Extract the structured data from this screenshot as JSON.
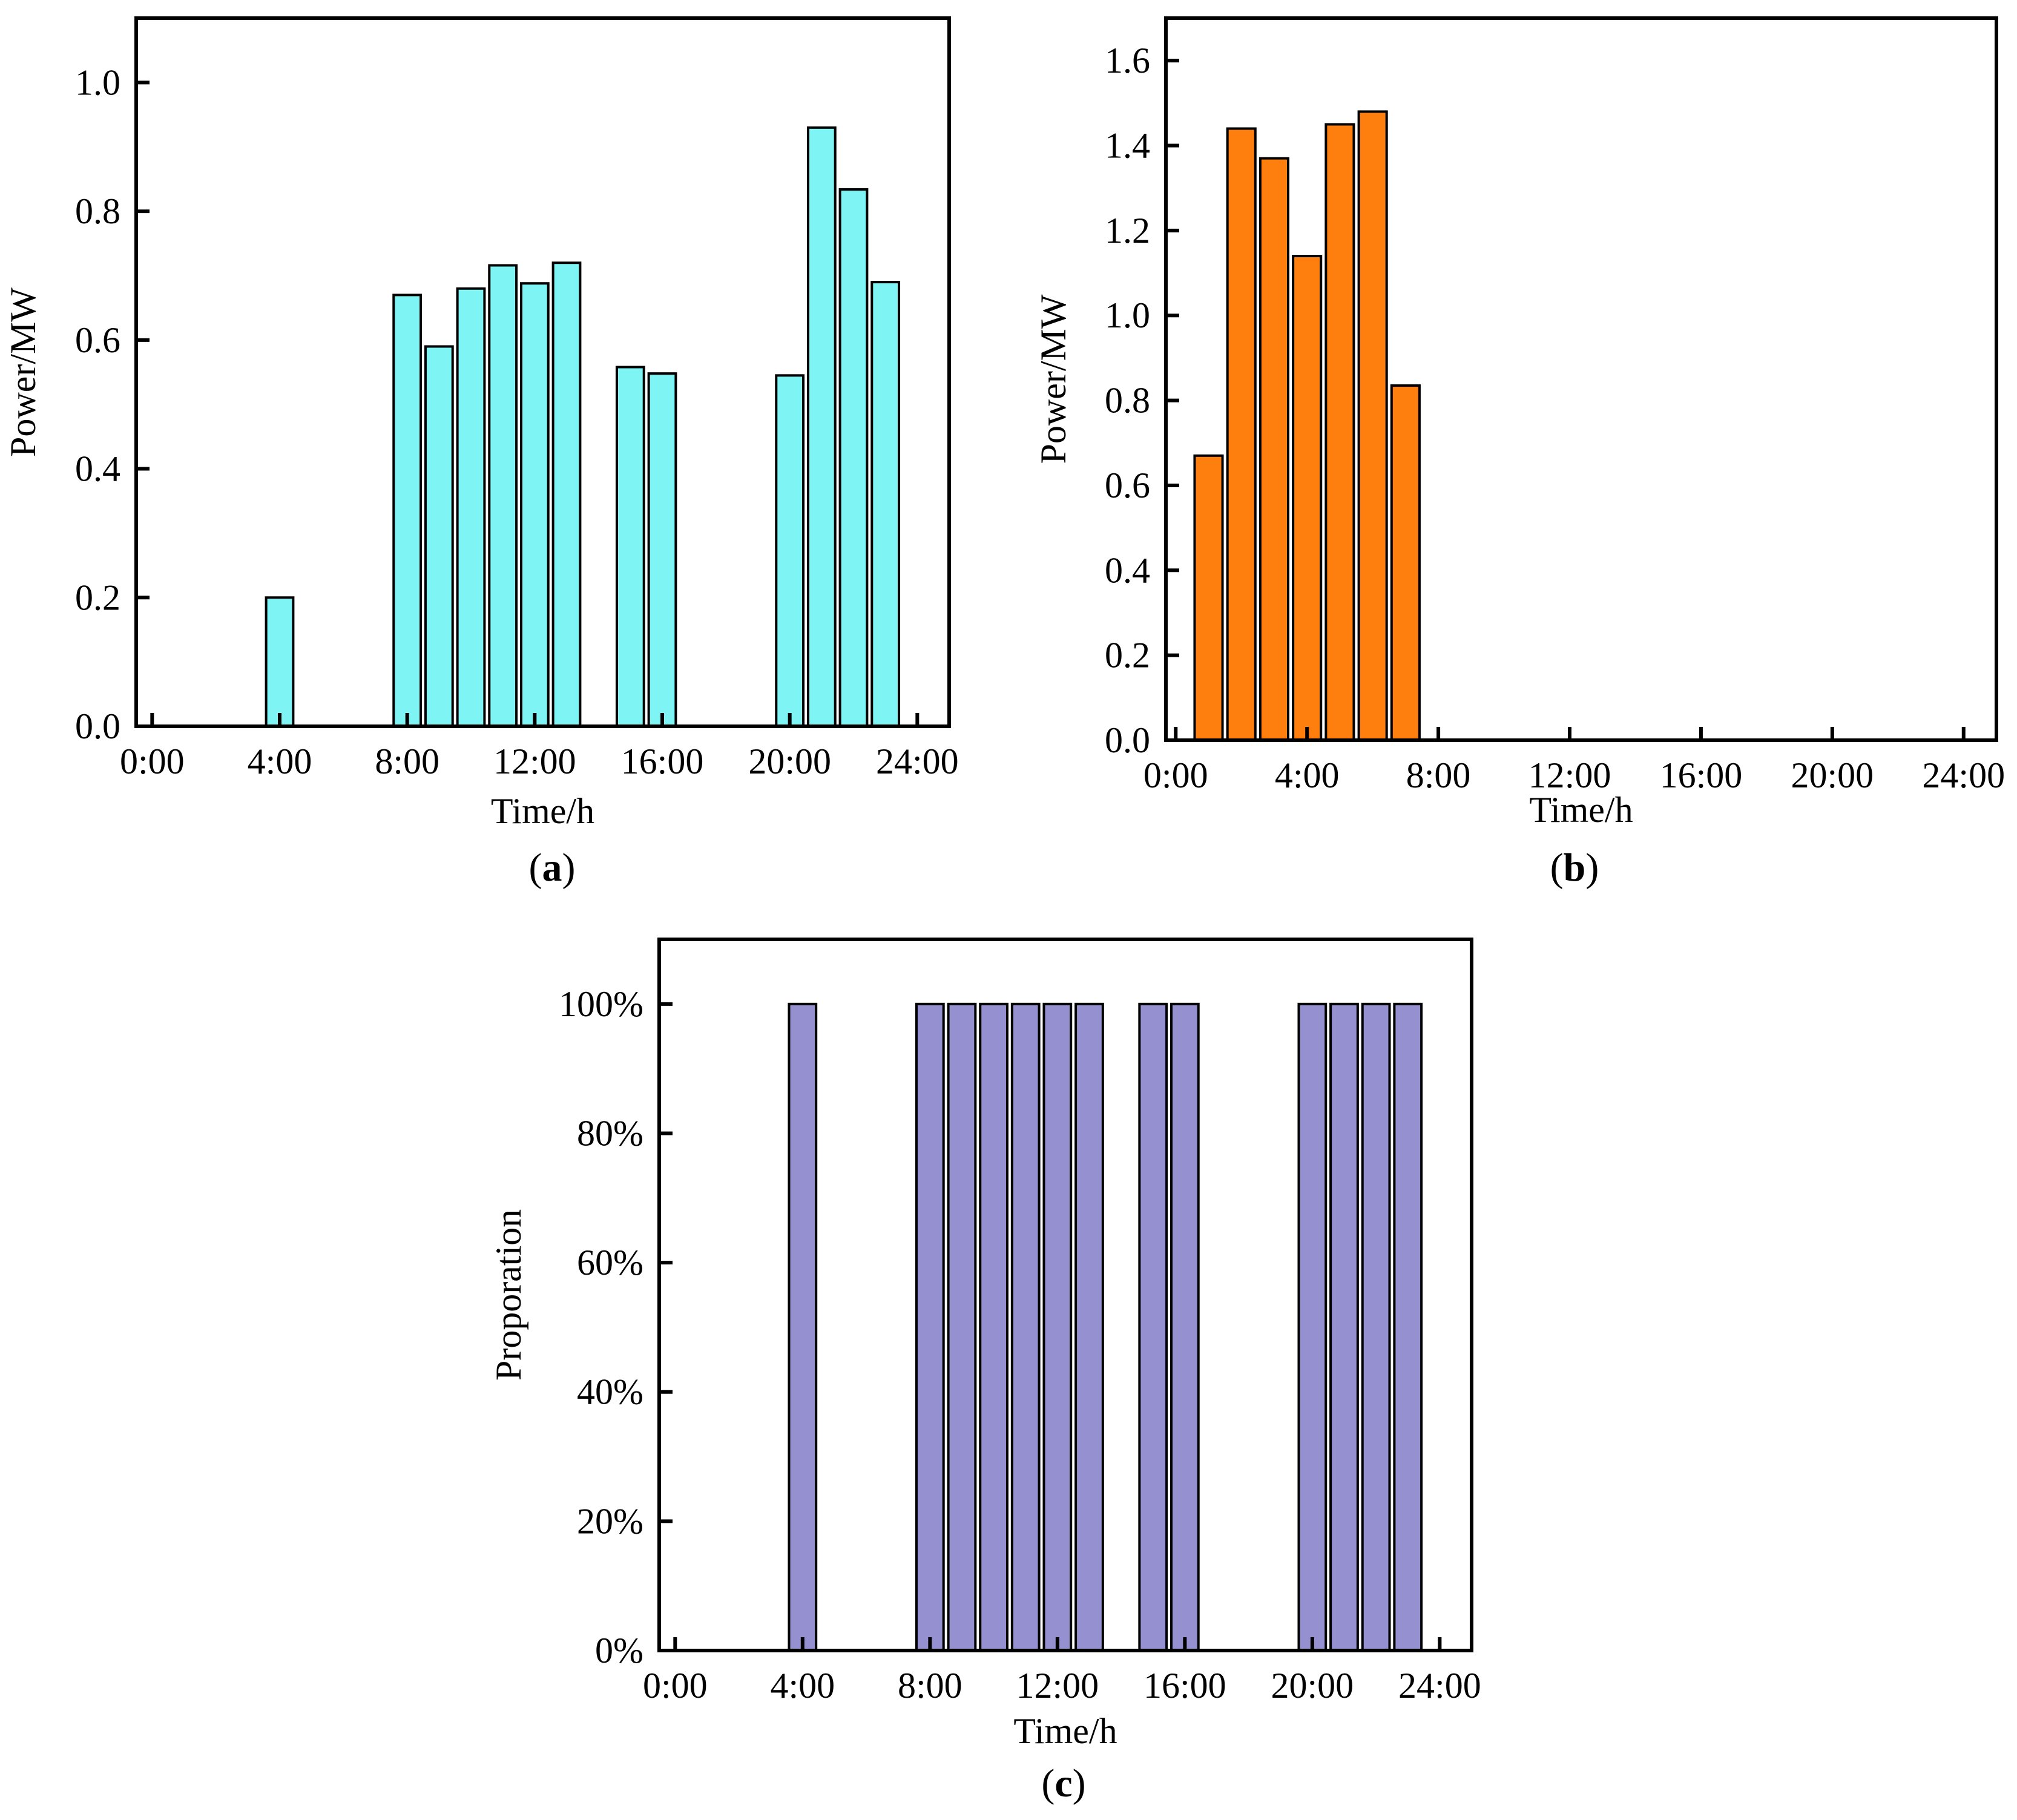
{
  "figure": {
    "panels": [
      {
        "label_open": "(",
        "label_letter": "a",
        "label_close": ")"
      },
      {
        "label_open": "(",
        "label_letter": "b",
        "label_close": ")"
      },
      {
        "label_open": "(",
        "label_letter": "c",
        "label_close": ")"
      }
    ]
  },
  "colors": {
    "panel_a_bar": "#7ff4f4",
    "panel_b_bar": "#ff7f0e",
    "panel_c_bar": "#9591d0",
    "edge": "#000000"
  },
  "chart_data": [
    {
      "type": "bar",
      "panel": "a",
      "xlabel": "Time/h",
      "ylabel": "Power/MW",
      "xlim": [
        -0.5,
        25
      ],
      "ylim": [
        0,
        1.1
      ],
      "xticks": [
        0,
        4,
        8,
        12,
        16,
        20,
        24
      ],
      "xtick_labels": [
        "0:00",
        "4:00",
        "8:00",
        "12:00",
        "16:00",
        "20:00",
        "24:00"
      ],
      "yticks": [
        0,
        0.2,
        0.4,
        0.6,
        0.8,
        1.0
      ],
      "ytick_labels": [
        "0.0",
        "0.2",
        "0.4",
        "0.6",
        "0.8",
        "1.0"
      ],
      "bar_width": 0.85,
      "x": [
        4,
        8,
        9,
        10,
        11,
        12,
        13,
        15,
        16,
        20,
        21,
        22,
        23
      ],
      "values": [
        0.2,
        0.67,
        0.59,
        0.68,
        0.716,
        0.688,
        0.72,
        0.558,
        0.548,
        0.545,
        0.93,
        0.834,
        0.69
      ]
    },
    {
      "type": "bar",
      "panel": "b",
      "xlabel": "Time/h",
      "ylabel": "Power/MW",
      "xlim": [
        -0.3,
        25
      ],
      "ylim": [
        0,
        1.7
      ],
      "xticks": [
        0,
        4,
        8,
        12,
        16,
        20,
        24
      ],
      "xtick_labels": [
        "0:00",
        "4:00",
        "8:00",
        "12:00",
        "16:00",
        "20:00",
        "24:00"
      ],
      "yticks": [
        0,
        0.2,
        0.4,
        0.6,
        0.8,
        1.0,
        1.2,
        1.4,
        1.6
      ],
      "ytick_labels": [
        "0.0",
        "0.2",
        "0.4",
        "0.6",
        "0.8",
        "1.0",
        "1.2",
        "1.4",
        "1.6"
      ],
      "bar_width": 0.85,
      "x": [
        1,
        2,
        3,
        4,
        5,
        6,
        7
      ],
      "values": [
        0.67,
        1.44,
        1.37,
        1.14,
        1.45,
        1.48,
        0.835
      ]
    },
    {
      "type": "bar",
      "panel": "c",
      "xlabel": "Time/h",
      "ylabel": "Proporation",
      "xlim": [
        -0.5,
        25
      ],
      "ylim": [
        0,
        110
      ],
      "xticks": [
        0,
        4,
        8,
        12,
        16,
        20,
        24
      ],
      "xtick_labels": [
        "0:00",
        "4:00",
        "8:00",
        "12:00",
        "16:00",
        "20:00",
        "24:00"
      ],
      "yticks": [
        0,
        20,
        40,
        60,
        80,
        100
      ],
      "ytick_labels": [
        "0%",
        "20%",
        "40%",
        "60%",
        "80%",
        "100%"
      ],
      "bar_width": 0.85,
      "x": [
        4,
        8,
        9,
        10,
        11,
        12,
        13,
        15,
        16,
        20,
        21,
        22,
        23
      ],
      "values": [
        100,
        100,
        100,
        100,
        100,
        100,
        100,
        100,
        100,
        100,
        100,
        100,
        100
      ]
    }
  ]
}
